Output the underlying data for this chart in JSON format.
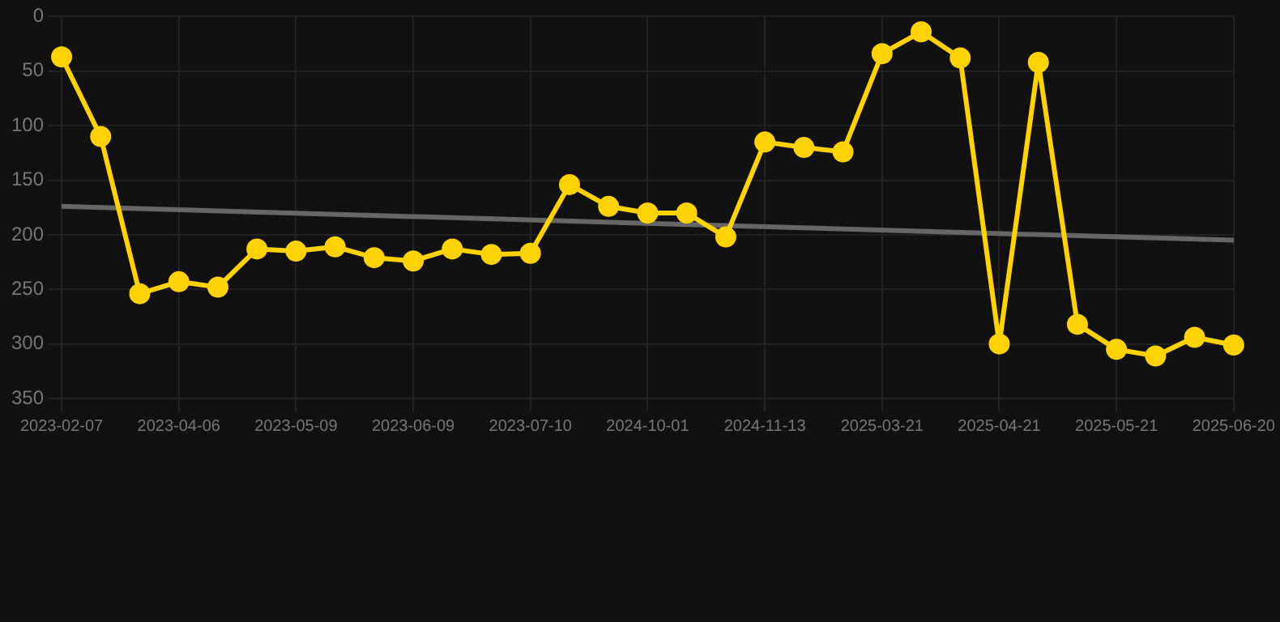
{
  "chart_data": {
    "type": "line",
    "categories": [
      "2023-02-07",
      null,
      null,
      "2023-04-06",
      null,
      null,
      "2023-05-09",
      null,
      null,
      "2023-06-09",
      null,
      null,
      "2023-07-10",
      null,
      null,
      "2024-10-01",
      null,
      null,
      "2024-11-13",
      null,
      null,
      "2025-03-21",
      null,
      null,
      "2025-04-21",
      null,
      null,
      "2025-05-21",
      null,
      null,
      "2025-06-20"
    ],
    "series": [
      {
        "color": "#ffd200",
        "marker": "circle",
        "values": [
          37,
          110,
          254,
          243,
          248,
          213,
          215,
          211,
          221,
          224,
          213,
          218,
          217,
          154,
          174,
          180,
          180,
          202,
          115,
          120,
          124,
          34,
          14,
          38,
          300,
          42,
          282,
          305,
          311,
          294,
          301
        ]
      },
      {
        "type": "line",
        "color": "#666666",
        "marker": "none",
        "values": [
          174,
          null,
          null,
          null,
          null,
          null,
          null,
          null,
          null,
          null,
          null,
          null,
          null,
          null,
          null,
          null,
          null,
          null,
          null,
          null,
          null,
          null,
          null,
          null,
          null,
          null,
          null,
          null,
          null,
          null,
          205
        ]
      }
    ],
    "ylim": [
      350,
      0
    ],
    "yticks": [
      0,
      50,
      100,
      150,
      200,
      250,
      300,
      350
    ],
    "grid": true,
    "legend": false,
    "line_style": "solid"
  }
}
